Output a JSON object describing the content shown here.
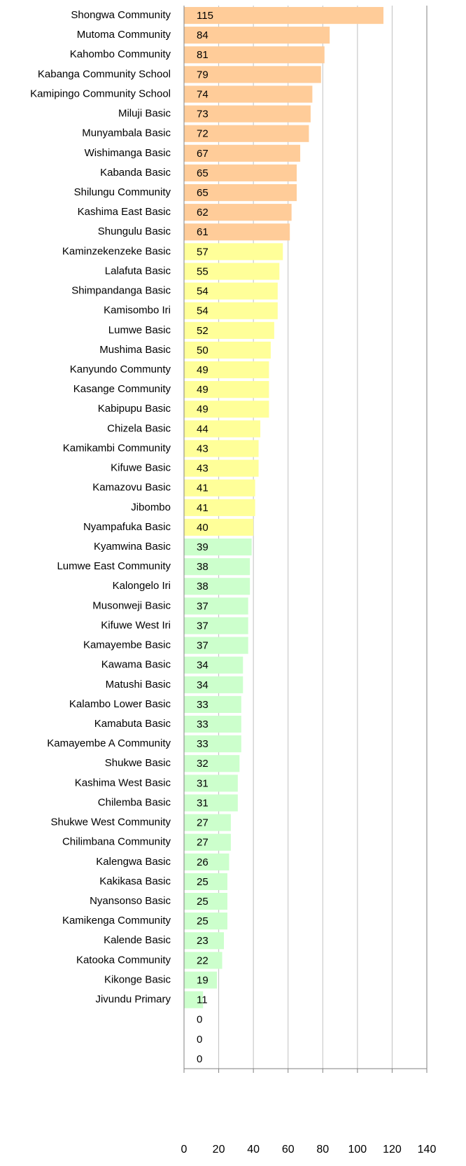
{
  "chart_data": {
    "type": "barh",
    "categories": [
      "Shongwa Community",
      "Mutoma Community",
      "Kahombo Community",
      "Kabanga Community School",
      "Kamipingo Community School",
      "Miluji Basic",
      "Munyambala Basic",
      "Wishimanga Basic",
      "Kabanda Basic",
      "Shilungu Community",
      "Kashima East Basic",
      "Shungulu Basic",
      "Kaminzekenzeke Basic",
      "Lalafuta Basic",
      "Shimpandanga Basic",
      "Kamisombo Iri",
      "Lumwe Basic",
      "Mushima Basic",
      "Kanyundo Communty",
      "Kasange Community",
      "Kabipupu Basic",
      "Chizela Basic",
      "Kamikambi Community",
      "Kifuwe Basic",
      "Kamazovu Basic",
      "Jibombo",
      "Nyampafuka Basic",
      "Kyamwina Basic",
      "Lumwe East Community",
      "Kalongelo Iri",
      "Musonweji Basic",
      "Kifuwe West Iri",
      "Kamayembe Basic",
      "Kawama Basic",
      "Matushi Basic",
      "Kalambo Lower Basic",
      "Kamabuta Basic",
      "Kamayembe A Community",
      "Shukwe Basic",
      "Kashima West Basic",
      "Chilemba Basic",
      "Shukwe West Community",
      "Chilimbana Community",
      "Kalengwa Basic",
      "Kakikasa Basic",
      "Nyansonso Basic",
      "Kamikenga Community",
      "Kalende Basic",
      "Katooka Community",
      "Kikonge Basic",
      "Jivundu Primary",
      null,
      null,
      null
    ],
    "values": [
      115,
      84,
      81,
      79,
      74,
      73,
      72,
      67,
      65,
      65,
      62,
      61,
      57,
      55,
      54,
      54,
      52,
      50,
      49,
      49,
      49,
      44,
      43,
      43,
      41,
      41,
      40,
      39,
      38,
      38,
      37,
      37,
      37,
      34,
      34,
      33,
      33,
      33,
      32,
      31,
      31,
      27,
      27,
      26,
      25,
      25,
      25,
      23,
      22,
      19,
      11,
      0,
      0,
      0
    ],
    "colors": [
      "#ffcc99",
      "#ffcc99",
      "#ffcc99",
      "#ffcc99",
      "#ffcc99",
      "#ffcc99",
      "#ffcc99",
      "#ffcc99",
      "#ffcc99",
      "#ffcc99",
      "#ffcc99",
      "#ffcc99",
      "#ffff99",
      "#ffff99",
      "#ffff99",
      "#ffff99",
      "#ffff99",
      "#ffff99",
      "#ffff99",
      "#ffff99",
      "#ffff99",
      "#ffff99",
      "#ffff99",
      "#ffff99",
      "#ffff99",
      "#ffff99",
      "#ffff99",
      "#ccffcc",
      "#ccffcc",
      "#ccffcc",
      "#ccffcc",
      "#ccffcc",
      "#ccffcc",
      "#ccffcc",
      "#ccffcc",
      "#ccffcc",
      "#ccffcc",
      "#ccffcc",
      "#ccffcc",
      "#ccffcc",
      "#ccffcc",
      "#ccffcc",
      "#ccffcc",
      "#ccffcc",
      "#ccffcc",
      "#ccffcc",
      "#ccffcc",
      "#ccffcc",
      "#ccffcc",
      "#ccffcc",
      "#ccffcc",
      "#ccffcc",
      "#ccffcc",
      "#ccffcc"
    ],
    "xlim": [
      0,
      140
    ],
    "xticks": [
      0,
      20,
      40,
      60,
      80,
      100,
      120,
      140
    ],
    "grid": true
  }
}
